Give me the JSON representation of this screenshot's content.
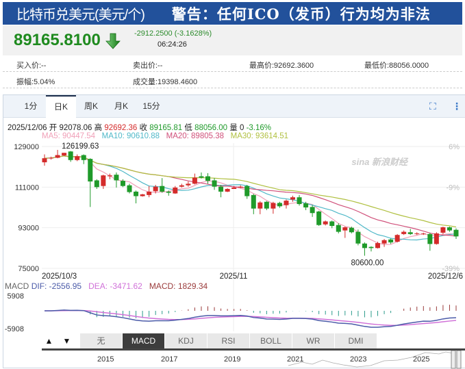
{
  "header": {
    "title": "比特币兑美元(美元/个)",
    "warning": "警告：任何ICO（发币）行为均为非法"
  },
  "quote": {
    "price": "89165.8100",
    "direction": "down",
    "change": "-2912.2500 (-3.1628%)",
    "time": "06:24:26"
  },
  "stats": {
    "bid": "买入价:--",
    "ask": "卖出价:--",
    "high": "最高价:92692.3600",
    "low": "最低价:88056.0000",
    "amplitude": "振幅:5.04%",
    "volume": "成交量:19398.4600"
  },
  "tabs": [
    "1分",
    "日K",
    "周K",
    "月K",
    "15分"
  ],
  "active_tab": "日K",
  "toolbar": {
    "fullscreen_icon": "fullscreen-icon",
    "more_icon": "more-vertical-icon"
  },
  "ohlc_line": {
    "date": "2025/12/06",
    "open_label": "开",
    "open": "92078.06",
    "high_label": "高",
    "high": "92692.36",
    "close_label": "收",
    "close": "89165.81",
    "low_label": "低",
    "low": "88056.00",
    "vol_label": "量",
    "vol": "0",
    "pct": "-3.16%"
  },
  "ma_line": {
    "ma5": "MA5: 90447.54",
    "ma10": "MA10: 90610.88",
    "ma20": "MA20: 89805.38",
    "ma30": "MA30: 93614.51"
  },
  "macd_line": {
    "name": "MACD",
    "dif": "DIF: -2556.95",
    "dea": "DEA: -3471.62",
    "macd": "MACD: 1829.34"
  },
  "indicator_tabs": [
    "无",
    "MACD",
    "KDJ",
    "RSI",
    "BOLL",
    "WR",
    "DMI"
  ],
  "active_indicator": "MACD",
  "navigator_years": [
    "2015",
    "2017",
    "2019",
    "2021",
    "2023",
    "2025"
  ],
  "colors": {
    "up": "#d42b2b",
    "down": "#1f9a2a",
    "ma5": "#f0a0b8",
    "ma10": "#4fb8c8",
    "ma20": "#d0507a",
    "ma30": "#b0c040",
    "dif": "#4a5aa8",
    "dea": "#d070d8",
    "header": "#22519b"
  },
  "chart_data": {
    "type": "candlestick",
    "x_ticks": [
      "2025/10/3",
      "2025/11",
      "2025/12/6"
    ],
    "y_ticks": [
      129000,
      111000,
      93000,
      75000
    ],
    "y_pct_ticks": [
      "6%",
      "-9%",
      "-39%"
    ],
    "ylim": [
      75000,
      129000
    ],
    "annotations": {
      "max": "126199.63",
      "min": "80600.00"
    },
    "macd_ticks": [
      "5908",
      "-5908"
    ],
    "ohlc": [
      [
        122000,
        125500,
        120500,
        123800
      ],
      [
        123700,
        124500,
        123200,
        124000
      ],
      [
        124000,
        127500,
        123800,
        125200
      ],
      [
        125000,
        126200,
        124800,
        126200
      ],
      [
        126800,
        127000,
        122200,
        123000
      ],
      [
        123000,
        125500,
        122500,
        124700
      ],
      [
        125200,
        125500,
        121200,
        123000
      ],
      [
        123500,
        123800,
        102200,
        113500
      ],
      [
        114000,
        114500,
        110200,
        111000
      ],
      [
        111500,
        116500,
        110200,
        116200
      ],
      [
        115800,
        117000,
        114500,
        116200
      ],
      [
        116500,
        117500,
        110800,
        114000
      ],
      [
        113800,
        114500,
        111000,
        111500
      ],
      [
        111800,
        112500,
        108200,
        108800
      ],
      [
        109000,
        109500,
        103800,
        107000
      ],
      [
        107000,
        108000,
        106800,
        107800
      ],
      [
        107500,
        111500,
        106500,
        109000
      ],
      [
        109200,
        112000,
        108200,
        111200
      ],
      [
        111500,
        115000,
        108500,
        109000
      ],
      [
        109000,
        109500,
        107200,
        108500
      ],
      [
        108200,
        111500,
        108000,
        110800
      ],
      [
        111200,
        112500,
        110800,
        111800
      ],
      [
        111800,
        113500,
        111200,
        112500
      ],
      [
        112500,
        117000,
        112200,
        115200
      ],
      [
        115800,
        117500,
        114800,
        115200
      ],
      [
        115800,
        117200,
        112500,
        113800
      ],
      [
        114000,
        115000,
        109800,
        111200
      ],
      [
        111200,
        112000,
        106500,
        109000
      ],
      [
        109000,
        110500,
        108800,
        110200
      ],
      [
        110200,
        111500,
        110200,
        110800
      ],
      [
        110800,
        111800,
        110500,
        111200
      ],
      [
        111500,
        112000,
        105800,
        107000
      ],
      [
        107500,
        108000,
        99000,
        101500
      ],
      [
        101500,
        104800,
        99000,
        104200
      ],
      [
        104500,
        104800,
        100800,
        101500
      ],
      [
        101500,
        104500,
        99200,
        104000
      ],
      [
        104000,
        104500,
        101800,
        102500
      ],
      [
        103000,
        105500,
        101500,
        105000
      ],
      [
        105500,
        107200,
        104500,
        106500
      ],
      [
        106500,
        107500,
        102800,
        103500
      ],
      [
        103800,
        104500,
        100800,
        102000
      ],
      [
        102200,
        103000,
        97800,
        99500
      ],
      [
        100200,
        100500,
        93800,
        94200
      ],
      [
        94500,
        96200,
        94000,
        95800
      ],
      [
        95800,
        96200,
        92800,
        93800
      ],
      [
        94200,
        95000,
        90500,
        91200
      ],
      [
        91800,
        93500,
        88500,
        93200
      ],
      [
        93000,
        93500,
        90500,
        91000
      ],
      [
        91200,
        92200,
        85200,
        86000
      ],
      [
        86000,
        86500,
        80600,
        84000
      ],
      [
        84500,
        84800,
        82500,
        84000
      ],
      [
        84000,
        86800,
        83800,
        86200
      ],
      [
        86000,
        88000,
        84500,
        87500
      ],
      [
        87800,
        88200,
        85800,
        86500
      ],
      [
        86800,
        90200,
        86500,
        89800
      ],
      [
        90200,
        91800,
        89800,
        91200
      ],
      [
        91000,
        92500,
        89800,
        90200
      ],
      [
        90200,
        91000,
        89800,
        90500
      ],
      [
        90200,
        90800,
        89800,
        90400
      ],
      [
        90200,
        90800,
        82800,
        85800
      ],
      [
        85800,
        91000,
        85500,
        90500
      ],
      [
        90800,
        93500,
        90200,
        93200
      ],
      [
        93200,
        93500,
        91200,
        91800
      ],
      [
        92078,
        92692,
        88056,
        89166
      ]
    ]
  }
}
